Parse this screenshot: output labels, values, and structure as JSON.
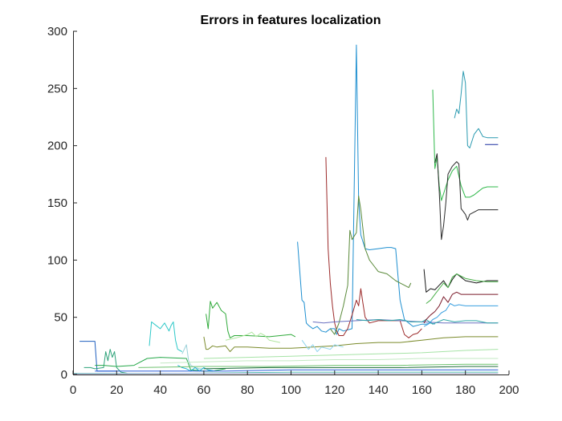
{
  "chart_data": {
    "type": "line",
    "title": "Errors in features localization",
    "xlabel": "",
    "ylabel": "",
    "xlim": [
      0,
      200
    ],
    "ylim": [
      0,
      300
    ],
    "x_ticks": [
      "0",
      "20",
      "40",
      "60",
      "80",
      "100",
      "120",
      "140",
      "160",
      "180",
      "200"
    ],
    "y_ticks": [
      "0",
      "50",
      "100",
      "150",
      "200",
      "250",
      "300"
    ],
    "grid": false,
    "legend": "none",
    "series": [
      {
        "color": "#1f5fbf",
        "x": [
          3,
          10,
          11,
          20
        ],
        "y": [
          29,
          29,
          3,
          3
        ]
      },
      {
        "color": "#2fa37a",
        "x": [
          5,
          8,
          10,
          14,
          15,
          16,
          17,
          18,
          19,
          20,
          22,
          25
        ],
        "y": [
          6,
          6,
          5,
          6,
          20,
          12,
          22,
          15,
          20,
          6,
          2,
          1
        ]
      },
      {
        "color": "#26a84a",
        "x": [
          10,
          14,
          20,
          28,
          30,
          34,
          40,
          52,
          54,
          60,
          64,
          70
        ],
        "y": [
          8,
          8,
          7,
          8,
          10,
          14,
          15,
          14,
          4,
          3,
          3,
          5
        ]
      },
      {
        "color": "#2ec8c8",
        "x": [
          35,
          36,
          38,
          40,
          42,
          44,
          45,
          46,
          47,
          48,
          50
        ],
        "y": [
          25,
          46,
          43,
          40,
          45,
          38,
          43,
          46,
          30,
          22,
          20
        ]
      },
      {
        "color": "#9ad0d8",
        "x": [
          50,
          52,
          53,
          54,
          56,
          58,
          60
        ],
        "y": [
          18,
          26,
          12,
          8,
          6,
          5,
          5
        ]
      },
      {
        "color": "#25b5d5",
        "x": [
          48,
          50,
          52,
          54,
          56,
          58,
          60,
          62,
          65
        ],
        "y": [
          8,
          6,
          5,
          3,
          6,
          3,
          6,
          4,
          3
        ]
      },
      {
        "color": "#2faa3a",
        "x": [
          61,
          62,
          63,
          64,
          66,
          68,
          70,
          71,
          72,
          74,
          76,
          80,
          90,
          100,
          102
        ],
        "y": [
          53,
          40,
          64,
          58,
          63,
          56,
          53,
          38,
          32,
          34,
          34,
          34,
          33,
          35,
          33
        ]
      },
      {
        "color": "#7a8a2a",
        "x": [
          60,
          61,
          62,
          64,
          66,
          70,
          72,
          74,
          80,
          90,
          100,
          110,
          120,
          130,
          140,
          150,
          160,
          170,
          180,
          195
        ],
        "y": [
          33,
          22,
          22,
          25,
          24,
          25,
          20,
          24,
          24,
          23,
          23,
          24,
          25,
          27,
          28,
          28,
          30,
          32,
          33,
          33
        ]
      },
      {
        "color": "#b0e6a0",
        "x": [
          70,
          75,
          80,
          82,
          84,
          86,
          88,
          90,
          95
        ],
        "y": [
          30,
          32,
          35,
          37,
          33,
          36,
          34,
          30,
          28
        ]
      },
      {
        "color": "#1e8fd0",
        "x": [
          103,
          105,
          106,
          107,
          108,
          110,
          112,
          114,
          116,
          118,
          120,
          121,
          122,
          124,
          128,
          130,
          131,
          132,
          134,
          136,
          140,
          144,
          146,
          148,
          150,
          152,
          154,
          156,
          158,
          160,
          162,
          164,
          166
        ],
        "y": [
          116,
          65,
          63,
          45,
          43,
          40,
          42,
          38,
          37,
          40,
          40,
          35,
          40,
          38,
          40,
          288,
          152,
          122,
          110,
          109,
          110,
          111,
          111,
          110,
          65,
          48,
          45,
          42,
          43,
          44,
          44,
          45,
          44
        ]
      },
      {
        "color": "#9c2a2a",
        "x": [
          116,
          117,
          118,
          119,
          120,
          121,
          122,
          124,
          126,
          128,
          130,
          131,
          132,
          133,
          134,
          136,
          140,
          150,
          152,
          154,
          156,
          158,
          160
        ],
        "y": [
          190,
          110,
          80,
          60,
          45,
          38,
          34,
          34,
          40,
          52,
          65,
          60,
          75,
          62,
          50,
          45,
          47,
          47,
          35,
          32,
          35,
          36,
          40
        ]
      },
      {
        "color": "#5a8a3a",
        "x": [
          118,
          120,
          122,
          124,
          126,
          127,
          128,
          130,
          131,
          132,
          134,
          136,
          138,
          140,
          144,
          148,
          150,
          152,
          154,
          155
        ],
        "y": [
          40,
          35,
          45,
          60,
          78,
          126,
          118,
          124,
          156,
          144,
          110,
          100,
          95,
          90,
          88,
          82,
          80,
          78,
          76,
          80
        ]
      },
      {
        "color": "#6a70c0",
        "x": [
          110,
          115,
          120,
          130,
          140,
          150,
          160,
          170,
          180,
          195
        ],
        "y": [
          46,
          45,
          46,
          47,
          48,
          47,
          46,
          45,
          45,
          45
        ]
      },
      {
        "color": "#30a8a8",
        "x": [
          130,
          135,
          140,
          145,
          150,
          155,
          160,
          162,
          165,
          170,
          175,
          180,
          185,
          190,
          195
        ],
        "y": [
          48,
          47,
          48,
          47,
          48,
          46,
          46,
          48,
          44,
          48,
          46,
          47,
          47,
          45,
          45
        ]
      },
      {
        "color": "#1a1a1a",
        "x": [
          161,
          162,
          164,
          166,
          168,
          170,
          172,
          174,
          176,
          178,
          180,
          185,
          190,
          195
        ],
        "y": [
          92,
          72,
          75,
          74,
          78,
          82,
          76,
          83,
          88,
          85,
          82,
          80,
          82,
          82
        ]
      },
      {
        "color": "#4ab04a",
        "x": [
          162,
          164,
          166,
          168,
          170,
          172,
          174,
          176,
          180,
          185,
          190,
          195
        ],
        "y": [
          62,
          65,
          70,
          75,
          80,
          76,
          85,
          88,
          84,
          82,
          81,
          81
        ]
      },
      {
        "color": "#7a1a2a",
        "x": [
          161,
          162,
          164,
          166,
          168,
          170,
          172,
          174,
          176,
          178,
          180,
          190,
          195
        ],
        "y": [
          45,
          48,
          52,
          55,
          60,
          68,
          63,
          70,
          72,
          70,
          70,
          70,
          70
        ]
      },
      {
        "color": "#3aa0e0",
        "x": [
          161,
          163,
          165,
          167,
          169,
          171,
          173,
          175,
          177,
          180,
          190,
          195
        ],
        "y": [
          42,
          44,
          48,
          50,
          54,
          56,
          62,
          60,
          61,
          60,
          60,
          60
        ]
      },
      {
        "color": "#2fb84a",
        "x": [
          165,
          166,
          167,
          168,
          169,
          170,
          172,
          174,
          176,
          178,
          180,
          182,
          184,
          186,
          188,
          190,
          195
        ],
        "y": [
          249,
          180,
          190,
          165,
          152,
          158,
          170,
          178,
          182,
          165,
          155,
          155,
          157,
          160,
          163,
          164,
          164
        ]
      },
      {
        "color": "#2a2a2a",
        "x": [
          166,
          167,
          168,
          169,
          170,
          171,
          172,
          174,
          176,
          177,
          178,
          180,
          181,
          182,
          184,
          186,
          188,
          190,
          195
        ],
        "y": [
          185,
          193,
          160,
          118,
          130,
          150,
          175,
          182,
          186,
          184,
          145,
          140,
          135,
          140,
          142,
          144,
          144,
          144,
          144
        ]
      },
      {
        "color": "#2a9ab0",
        "x": [
          175,
          176,
          177,
          178,
          179,
          180,
          181,
          182,
          184,
          186,
          188,
          190,
          195
        ],
        "y": [
          224,
          232,
          228,
          245,
          265,
          255,
          200,
          198,
          210,
          215,
          208,
          207,
          207
        ]
      },
      {
        "color": "#1a2fa0",
        "x": [
          189,
          195
        ],
        "y": [
          201,
          201
        ]
      },
      {
        "color": "#a6e3a6",
        "x": [
          60,
          80,
          100,
          120,
          140,
          160,
          180,
          195
        ],
        "y": [
          14,
          15,
          16,
          17,
          18,
          19,
          21,
          22
        ]
      },
      {
        "color": "#c3e9c3",
        "x": [
          40,
          60,
          80,
          100,
          120,
          140,
          160,
          180,
          195
        ],
        "y": [
          10,
          11,
          12,
          12,
          13,
          13,
          14,
          14,
          14
        ]
      },
      {
        "color": "#6fc26f",
        "x": [
          30,
          60,
          90,
          120,
          150,
          180,
          195
        ],
        "y": [
          6,
          7,
          7,
          8,
          8,
          9,
          9
        ]
      },
      {
        "color": "#2b5fd8",
        "x": [
          10,
          40,
          70,
          100,
          130,
          160,
          195
        ],
        "y": [
          3,
          3,
          3,
          4,
          4,
          4,
          4
        ]
      },
      {
        "color": "#1d6b3a",
        "x": [
          60,
          90,
          120,
          150,
          180,
          195
        ],
        "y": [
          5,
          6,
          6,
          6,
          7,
          7
        ]
      },
      {
        "color": "#8fd4ef",
        "x": [
          105,
          108,
          110,
          112,
          114,
          118,
          120,
          124
        ],
        "y": [
          30,
          22,
          26,
          20,
          24,
          22,
          26,
          24
        ]
      },
      {
        "color": "#5bc6b5",
        "x": [
          0,
          50,
          100,
          150,
          195
        ],
        "y": [
          1,
          1,
          2,
          2,
          2
        ]
      },
      {
        "color": "#b0b0d8",
        "x": [
          0,
          60,
          120,
          195
        ],
        "y": [
          0.5,
          1,
          1,
          1
        ]
      }
    ]
  }
}
